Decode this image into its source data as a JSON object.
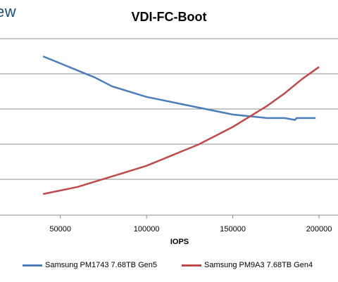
{
  "logo": {
    "text": "ew"
  },
  "chart_data": {
    "type": "line",
    "title": "VDI-FC-Boot",
    "xlabel": "IOPS",
    "ylabel": "",
    "xlim": [
      40000,
      200000
    ],
    "x_ticks": [
      50000,
      100000,
      150000,
      200000
    ],
    "x_tick_labels": [
      "50000",
      "100000",
      "150000",
      "200000"
    ],
    "grid": true,
    "legend_position": "bottom",
    "series": [
      {
        "name": "Samsung PM1743 7.68TB Gen5",
        "color": "#4a7ebb",
        "points": [
          [
            40000,
            0.9
          ],
          [
            50000,
            0.86
          ],
          [
            60000,
            0.82
          ],
          [
            70000,
            0.78
          ],
          [
            80000,
            0.73
          ],
          [
            90000,
            0.7
          ],
          [
            100000,
            0.67
          ],
          [
            110000,
            0.65
          ],
          [
            120000,
            0.63
          ],
          [
            130000,
            0.61
          ],
          [
            140000,
            0.59
          ],
          [
            150000,
            0.57
          ],
          [
            160000,
            0.56
          ],
          [
            170000,
            0.55
          ],
          [
            180000,
            0.55
          ],
          [
            186000,
            0.54
          ],
          [
            187000,
            0.55
          ],
          [
            195000,
            0.55
          ],
          [
            198000,
            0.55
          ]
        ]
      },
      {
        "name": "Samsung PM9A3 7.68TB Gen4",
        "color": "#be4b48",
        "points": [
          [
            40000,
            0.12
          ],
          [
            50000,
            0.14
          ],
          [
            60000,
            0.16
          ],
          [
            70000,
            0.19
          ],
          [
            80000,
            0.22
          ],
          [
            90000,
            0.25
          ],
          [
            100000,
            0.28
          ],
          [
            110000,
            0.32
          ],
          [
            120000,
            0.36
          ],
          [
            130000,
            0.4
          ],
          [
            140000,
            0.45
          ],
          [
            150000,
            0.5
          ],
          [
            160000,
            0.56
          ],
          [
            170000,
            0.62
          ],
          [
            180000,
            0.69
          ],
          [
            190000,
            0.77
          ],
          [
            200000,
            0.84
          ]
        ]
      }
    ]
  }
}
